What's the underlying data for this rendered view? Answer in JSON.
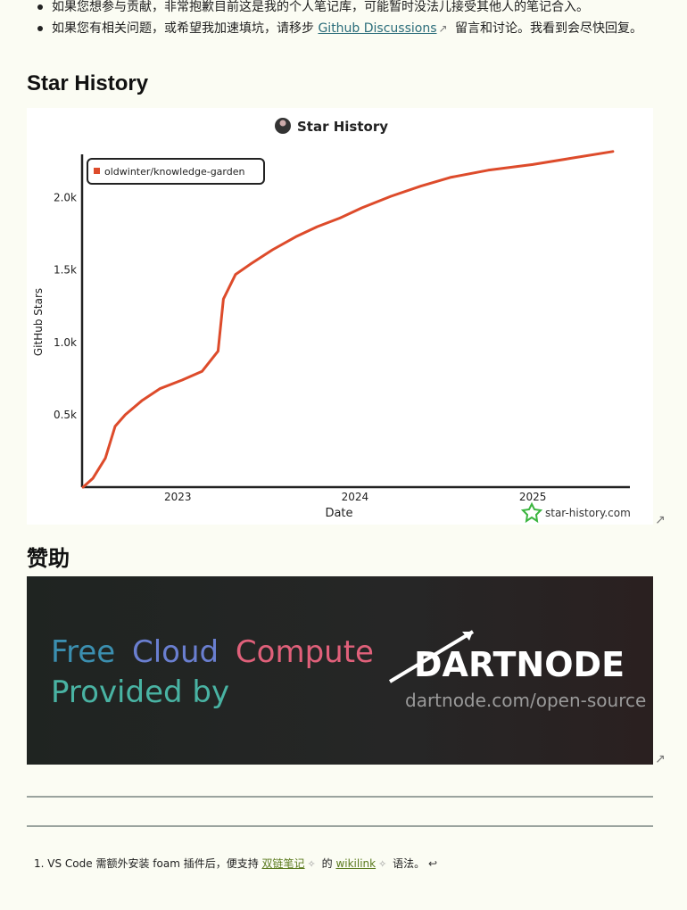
{
  "bullets": [
    {
      "text": "如果您想参与贡献，非常抱歉目前这是我的个人笔记库，可能暂时没法儿接受其他人的笔记合入。"
    },
    {
      "before": "如果您有相关问题，或希望我加速填坑，请移步 ",
      "link": "Github Discussions",
      "after": " 留言和讨论。我看到会尽快回复。"
    }
  ],
  "headings": {
    "star_history": "Star History",
    "sponsor": "赞助"
  },
  "chart_data": {
    "type": "line",
    "title": "Star History",
    "xlabel": "Date",
    "ylabel": "GitHub Stars",
    "x_ticks": [
      "2023",
      "2024",
      "2025"
    ],
    "y_ticks": [
      "0.5k",
      "1.0k",
      "1.5k",
      "2.0k"
    ],
    "ylim": [
      0,
      2300
    ],
    "legend": {
      "label": "oldwinter/knowledge-garden",
      "position": "top-left"
    },
    "watermark": "star-history.com",
    "series": [
      {
        "name": "oldwinter/knowledge-garden",
        "color": "#dd4b2b",
        "points": [
          [
            "2022-06-20",
            0
          ],
          [
            "2022-07-10",
            60
          ],
          [
            "2022-08-05",
            200
          ],
          [
            "2022-08-25",
            420
          ],
          [
            "2022-09-15",
            500
          ],
          [
            "2022-10-20",
            600
          ],
          [
            "2022-11-25",
            680
          ],
          [
            "2023-01-10",
            740
          ],
          [
            "2023-02-20",
            800
          ],
          [
            "2023-03-25",
            940
          ],
          [
            "2023-04-05",
            1300
          ],
          [
            "2023-04-30",
            1470
          ],
          [
            "2023-05-30",
            1540
          ],
          [
            "2023-07-15",
            1640
          ],
          [
            "2023-09-01",
            1730
          ],
          [
            "2023-10-15",
            1800
          ],
          [
            "2023-12-01",
            1860
          ],
          [
            "2024-01-15",
            1930
          ],
          [
            "2024-03-15",
            2010
          ],
          [
            "2024-05-15",
            2080
          ],
          [
            "2024-07-15",
            2140
          ],
          [
            "2024-10-01",
            2190
          ],
          [
            "2025-01-01",
            2230
          ],
          [
            "2025-03-15",
            2270
          ],
          [
            "2025-06-15",
            2320
          ]
        ]
      }
    ]
  },
  "banner": {
    "line1_words": [
      "Free",
      "Cloud",
      "Compute"
    ],
    "line2": "Provided by",
    "brand": "DARTNODE",
    "url": "dartnode.com/open-source"
  },
  "footnote": {
    "number": "1.",
    "before": "VS Code 需额外安装 foam 插件后，便支持",
    "link1": "双链笔记",
    "middle": "的",
    "link2": "wikilink",
    "after": "语法。",
    "back": "↩"
  }
}
